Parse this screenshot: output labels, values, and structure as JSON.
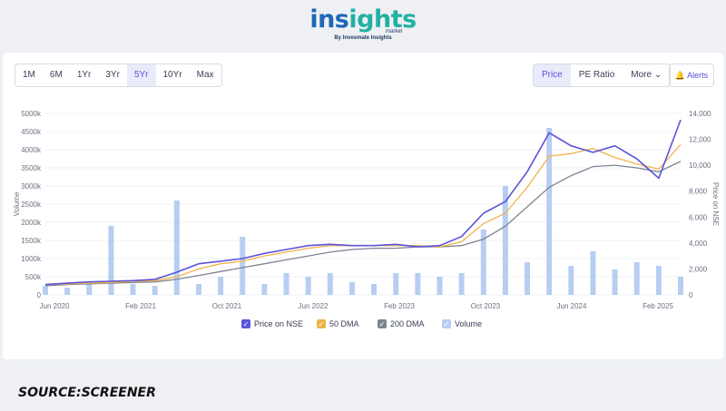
{
  "brand": {
    "name_part1": "ins",
    "name_part2": "ights",
    "tag": "market",
    "byline": "By Invesmate Insights"
  },
  "ranges": [
    "1M",
    "6M",
    "1Yr",
    "3Yr",
    "5Yr",
    "10Yr",
    "Max"
  ],
  "active_range": "5Yr",
  "metric_tabs": [
    "Price",
    "PE Ratio",
    "More"
  ],
  "active_metric": "Price",
  "alerts_label": "Alerts",
  "source": "SOURCE:SCREENER",
  "colors": {
    "price": "#5b54d8",
    "dma50": "#f0b34c",
    "dma200": "#7d8593",
    "volume": "#b8cdf2"
  },
  "chart_data": {
    "type": "line",
    "x": [
      "2020-06",
      "2020-08",
      "2020-10",
      "2020-12",
      "2021-02",
      "2021-04",
      "2021-06",
      "2021-08",
      "2021-10",
      "2021-12",
      "2022-02",
      "2022-04",
      "2022-06",
      "2022-08",
      "2022-10",
      "2022-12",
      "2023-02",
      "2023-04",
      "2023-06",
      "2023-08",
      "2023-10",
      "2023-12",
      "2024-02",
      "2024-04",
      "2024-06",
      "2024-08",
      "2024-10",
      "2024-12",
      "2025-02",
      "2025-04"
    ],
    "x_tick_labels": [
      "Jun 2020",
      "Feb 2021",
      "Oct 2021",
      "Jun 2022",
      "Feb 2023",
      "Oct 2023",
      "Jun 2024",
      "Feb 2025"
    ],
    "y_left": {
      "label": "Volume",
      "ticks": [
        "0",
        "500k",
        "1000k",
        "1500k",
        "2000k",
        "2500k",
        "3000k",
        "3500k",
        "4000k",
        "4500k",
        "5000k"
      ],
      "range": [
        0,
        5000000
      ]
    },
    "y_right": {
      "label": "Price on NSE",
      "ticks": [
        "0",
        "2,000",
        "4,000",
        "6,000",
        "8,000",
        "10,000",
        "12,000",
        "14,000"
      ],
      "range": [
        0,
        14000
      ]
    },
    "series": [
      {
        "name": "Price on NSE",
        "values": [
          800,
          900,
          1000,
          1050,
          1100,
          1200,
          1750,
          2400,
          2600,
          2800,
          3200,
          3500,
          3800,
          3900,
          3800,
          3800,
          3900,
          3700,
          3800,
          4500,
          6300,
          7200,
          9500,
          12500,
          11500,
          11000,
          11500,
          10500,
          9000,
          13500
        ]
      },
      {
        "name": "50 DMA",
        "values": [
          800,
          850,
          900,
          950,
          1050,
          1100,
          1400,
          2000,
          2400,
          2600,
          3000,
          3300,
          3600,
          3800,
          3800,
          3800,
          3800,
          3800,
          3700,
          4100,
          5500,
          6300,
          8300,
          10700,
          10900,
          11300,
          10600,
          10100,
          9700,
          11600
        ]
      },
      {
        "name": "200 DMA",
        "values": [
          700,
          800,
          850,
          900,
          950,
          1000,
          1200,
          1500,
          1800,
          2100,
          2400,
          2700,
          3000,
          3300,
          3500,
          3600,
          3600,
          3700,
          3700,
          3800,
          4300,
          5300,
          6800,
          8300,
          9200,
          9900,
          10000,
          9800,
          9500,
          10300
        ]
      },
      {
        "name": "Volume",
        "values": [
          250000,
          200000,
          300000,
          1900000,
          300000,
          250000,
          2600000,
          300000,
          500000,
          1600000,
          300000,
          600000,
          500000,
          600000,
          350000,
          300000,
          600000,
          600000,
          500000,
          600000,
          1800000,
          3000000,
          900000,
          4600000,
          800000,
          1200000,
          700000,
          900000,
          800000,
          500000
        ]
      }
    ],
    "legend": [
      "Price on NSE",
      "50 DMA",
      "200 DMA",
      "Volume"
    ]
  }
}
